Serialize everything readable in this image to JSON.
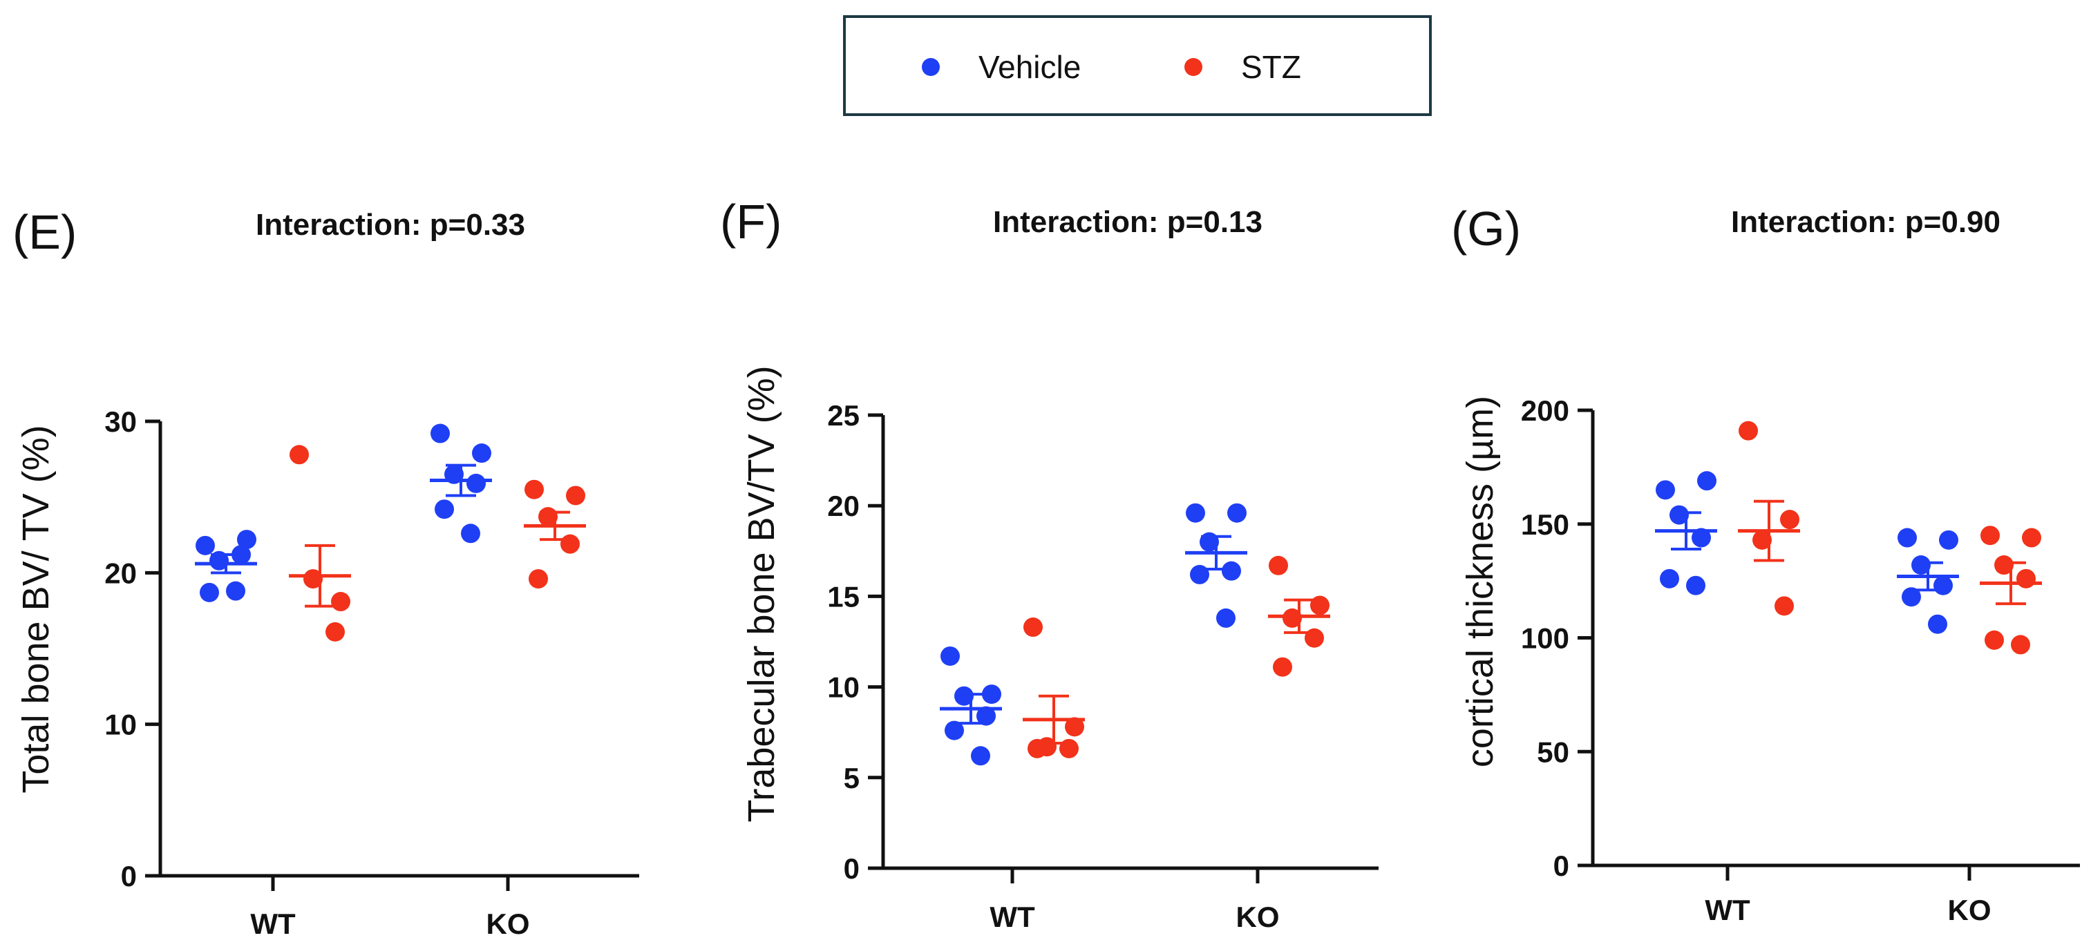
{
  "legend": {
    "items": [
      {
        "label": "Vehicle",
        "color": "#1f3ff5"
      },
      {
        "label": "STZ",
        "color": "#f2321a"
      }
    ]
  },
  "colors": {
    "vehicle": "#1f3ff5",
    "stz": "#f2321a",
    "axis": "#111111",
    "legend_border": "#1d3a44"
  },
  "chart_data": [
    {
      "type": "scatter",
      "panel_label": "(E)",
      "title": "Interaction: p=0.33",
      "ylabel": "Total bone BV/ TV (%)",
      "xlabel": "",
      "categories": [
        "WT",
        "KO"
      ],
      "ylim": [
        0,
        30
      ],
      "yticks": [
        0,
        10,
        20,
        30
      ],
      "series": [
        {
          "name": "Vehicle",
          "points": [
            [
              21.8,
              22.2,
              20.8,
              21.2,
              18.7,
              18.8
            ],
            [
              29.2,
              27.9,
              26.5,
              25.9,
              24.2,
              22.6
            ]
          ],
          "mean": [
            20.6,
            26.1
          ],
          "sem": [
            0.6,
            1.0
          ]
        },
        {
          "name": "STZ",
          "points": [
            [
              27.8,
              18.1,
              19.6,
              16.1
            ],
            [
              25.5,
              25.1,
              23.7,
              21.9,
              19.6
            ]
          ],
          "mean": [
            19.8,
            23.1
          ],
          "sem": [
            2.0,
            0.9
          ]
        }
      ]
    },
    {
      "type": "scatter",
      "panel_label": "(F)",
      "title": "Interaction: p=0.13",
      "ylabel": "Trabecular bone BV/TV (%)",
      "xlabel": "",
      "categories": [
        "WT",
        "KO"
      ],
      "ylim": [
        0,
        25
      ],
      "yticks": [
        0,
        5,
        10,
        15,
        20,
        25
      ],
      "series": [
        {
          "name": "Vehicle",
          "points": [
            [
              11.7,
              9.6,
              9.5,
              8.4,
              7.6,
              6.2
            ],
            [
              19.6,
              19.6,
              18.0,
              16.4,
              16.2,
              13.8
            ]
          ],
          "mean": [
            8.8,
            17.4
          ],
          "sem": [
            0.8,
            0.9
          ]
        },
        {
          "name": "STZ",
          "points": [
            [
              13.3,
              7.8,
              6.7,
              6.6,
              6.6
            ],
            [
              16.7,
              14.5,
              13.8,
              12.7,
              11.1
            ]
          ],
          "mean": [
            8.2,
            13.9
          ],
          "sem": [
            1.3,
            0.9
          ]
        }
      ]
    },
    {
      "type": "scatter",
      "panel_label": "(G)",
      "title": "Interaction: p=0.90",
      "ylabel": "cortical thickness (µm)",
      "xlabel": "",
      "categories": [
        "WT",
        "KO"
      ],
      "ylim": [
        0,
        200
      ],
      "yticks": [
        0,
        50,
        100,
        150,
        200
      ],
      "series": [
        {
          "name": "Vehicle",
          "points": [
            [
              165,
              169,
              154,
              144,
              126,
              123
            ],
            [
              144,
              143,
              132,
              123,
              118,
              106
            ]
          ],
          "mean": [
            147,
            127
          ],
          "sem": [
            8,
            6
          ]
        },
        {
          "name": "STZ",
          "points": [
            [
              191,
              152,
              143,
              114
            ],
            [
              145,
              144,
              132,
              126,
              99,
              97
            ]
          ],
          "mean": [
            147,
            124
          ],
          "sem": [
            13,
            9
          ]
        }
      ]
    }
  ]
}
